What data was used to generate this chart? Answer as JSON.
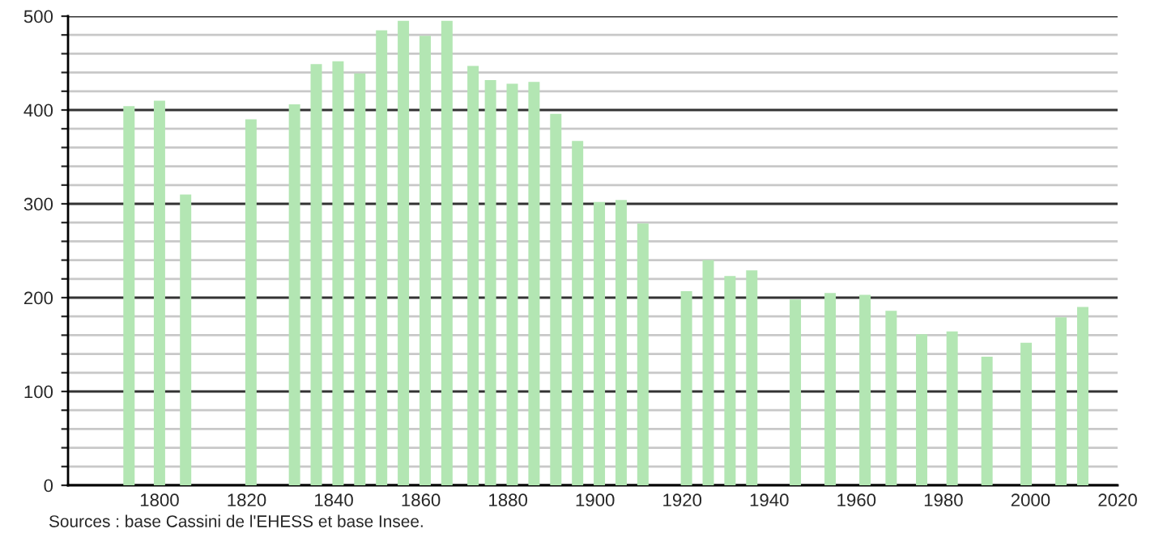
{
  "chart_data": {
    "type": "bar",
    "color": "#b3e6b3",
    "x": [
      1793,
      1800,
      1806,
      1821,
      1831,
      1836,
      1841,
      1846,
      1851,
      1856,
      1861,
      1866,
      1872,
      1876,
      1881,
      1886,
      1891,
      1896,
      1901,
      1906,
      1911,
      1921,
      1926,
      1931,
      1936,
      1946,
      1954,
      1962,
      1968,
      1975,
      1982,
      1990,
      1999,
      2007,
      2012
    ],
    "values": [
      404,
      410,
      310,
      390,
      406,
      449,
      452,
      439,
      485,
      495,
      479,
      495,
      447,
      432,
      428,
      430,
      396,
      367,
      302,
      304,
      279,
      207,
      240,
      223,
      229,
      198,
      205,
      203,
      186,
      161,
      164,
      137,
      152,
      179,
      190
    ],
    "xlim": [
      1779,
      2020
    ],
    "xticks": [
      1800,
      1820,
      1840,
      1860,
      1880,
      1900,
      1920,
      1940,
      1960,
      1980,
      2000,
      2020
    ],
    "ylim": [
      0,
      500
    ],
    "yticks": [
      0,
      {
        "value": 20,
        "label": null
      },
      {
        "value": 40,
        "label": null
      },
      {
        "value": 60,
        "label": null
      },
      {
        "value": 80,
        "label": null
      },
      100,
      {
        "value": 120,
        "label": null
      },
      {
        "value": 140,
        "label": null
      },
      {
        "value": 160,
        "label": null
      },
      {
        "value": 180,
        "label": null
      },
      200,
      {
        "value": 220,
        "label": null
      },
      {
        "value": 240,
        "label": null
      },
      {
        "value": 260,
        "label": null
      },
      {
        "value": 280,
        "label": null
      },
      300,
      {
        "value": 320,
        "label": null
      },
      {
        "value": 340,
        "label": null
      },
      {
        "value": 360,
        "label": null
      },
      {
        "value": 380,
        "label": null
      },
      400,
      {
        "value": 420,
        "label": null
      },
      {
        "value": 440,
        "label": null
      },
      {
        "value": 460,
        "label": null
      },
      {
        "value": 480,
        "label": null
      },
      500
    ],
    "grid": "y",
    "annotations": [
      "Sources : base Cassini de l'EHESS et base Insee."
    ]
  }
}
